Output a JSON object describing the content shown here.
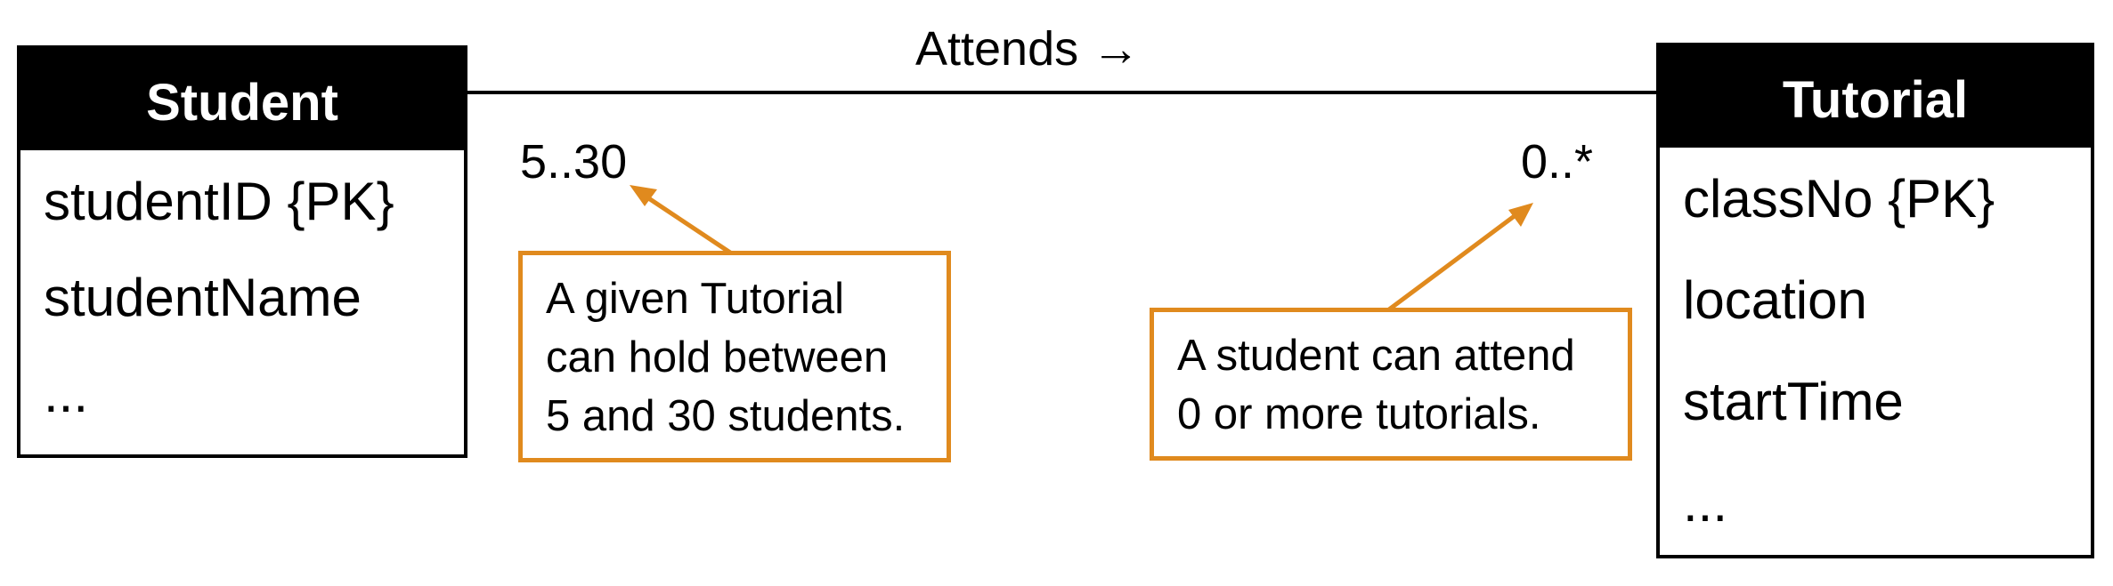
{
  "association": {
    "label": "Attends →",
    "student_multiplicity": "5..30",
    "tutorial_multiplicity": "0..*"
  },
  "entities": {
    "student": {
      "name": "Student",
      "attributes": [
        "studentID {PK}",
        "studentName",
        "..."
      ]
    },
    "tutorial": {
      "name": "Tutorial",
      "attributes": [
        "classNo {PK}",
        "location",
        "startTime",
        "..."
      ]
    }
  },
  "notes": {
    "student_side": {
      "lines": [
        "A given Tutorial",
        "can hold between",
        "5 and 30 students."
      ]
    },
    "tutorial_side": {
      "lines": [
        "A student can attend",
        "0 or more tutorials."
      ]
    }
  },
  "colors": {
    "line": "#000000",
    "header_bg": "#000000",
    "header_text": "#ffffff",
    "note_border": "#e08a1e",
    "arrow": "#e08a1e"
  }
}
